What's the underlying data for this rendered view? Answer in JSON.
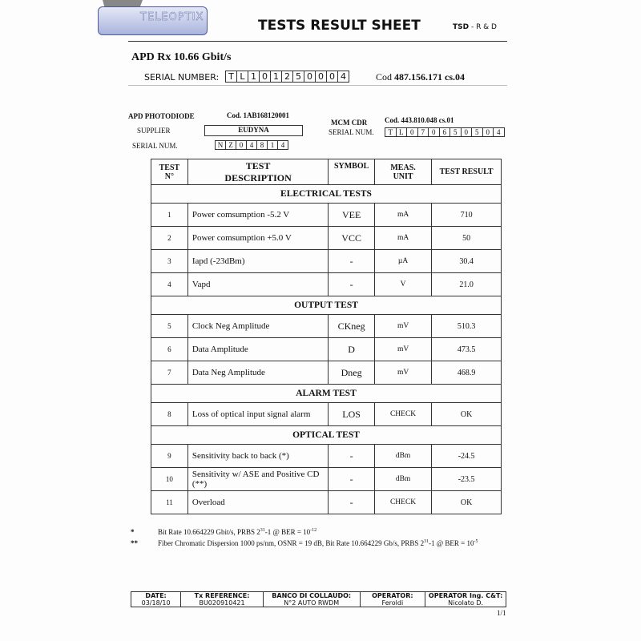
{
  "header": {
    "logo": "TELEOPTIX",
    "title": "TESTS RESULT SHEET",
    "dept_bold": "TSD",
    "dept": " - R & D"
  },
  "product": {
    "name": "APD Rx 10.66 Gbit/s",
    "serial_label": "SERIAL NUMBER:",
    "serial": [
      "T",
      "L",
      "1",
      "0",
      "1",
      "2",
      "5",
      "0",
      "0",
      "0",
      "4"
    ],
    "cod_label": "Cod ",
    "cod": "487.156.171 cs.04"
  },
  "photodiode": {
    "label": "APD PHOTODIODE",
    "cod": "Cod. 1AB168120001",
    "supplier_label": "SUPPLIER",
    "supplier": "EUDYNA",
    "serial_label": "SERIAL NUM.",
    "serial": [
      "N",
      "Z",
      "0",
      "4",
      "8",
      "1",
      "4"
    ]
  },
  "mcm": {
    "label": "MCM CDR",
    "cod": "Cod.  443.810.048 cs.01",
    "serial_label": "SERIAL NUM.",
    "serial": [
      "T",
      "L",
      "0",
      "7",
      "0",
      "6",
      "5",
      "0",
      "5",
      "0",
      "4"
    ]
  },
  "table": {
    "headers": {
      "num": "TEST N°",
      "desc_1": "TEST",
      "desc_2": "DESCRIPTION",
      "symbol": "SYMBOL",
      "unit": "MEAS. UNIT",
      "result": "TEST RESULT"
    },
    "sections": [
      {
        "title": "ELECTRICAL TESTS",
        "rows": [
          {
            "n": "1",
            "desc": "Power comsumption -5.2 V",
            "symbol": "VEE",
            "unit": "mA",
            "result": "710"
          },
          {
            "n": "2",
            "desc": "Power comsumption +5.0 V",
            "symbol": "VCC",
            "unit": "mA",
            "result": "50"
          },
          {
            "n": "3",
            "desc": "Iapd (-23dBm)",
            "symbol": "-",
            "unit": "µA",
            "result": "30.4"
          },
          {
            "n": "4",
            "desc": "Vapd",
            "symbol": "-",
            "unit": "V",
            "result": "21.0"
          }
        ]
      },
      {
        "title": "OUTPUT TEST",
        "rows": [
          {
            "n": "5",
            "desc": "Clock Neg Amplitude",
            "symbol": "CKneg",
            "unit": "mV",
            "result": "510.3"
          },
          {
            "n": "6",
            "desc": "Data  Amplitude",
            "symbol": "D",
            "unit": "mV",
            "result": "473.5"
          },
          {
            "n": "7",
            "desc": "Data  Neg Amplitude",
            "symbol": "Dneg",
            "unit": "mV",
            "result": "468.9"
          }
        ]
      },
      {
        "title": "ALARM TEST",
        "rows": [
          {
            "n": "8",
            "desc": "Loss of optical input signal alarm",
            "symbol": "LOS",
            "unit": "CHECK",
            "result": "OK"
          }
        ]
      },
      {
        "title": "OPTICAL TEST",
        "rows": [
          {
            "n": "9",
            "desc": "Sensitivity back to back (*)",
            "symbol": "-",
            "unit": "dBm",
            "result": "-24.5"
          },
          {
            "n": "10",
            "desc": "Sensitivity w/ ASE and Positive CD (**)",
            "symbol": "-",
            "unit": "dBm",
            "result": "-23.5"
          },
          {
            "n": "11",
            "desc": "Overload",
            "symbol": "-",
            "unit": "CHECK",
            "result": "OK"
          }
        ]
      }
    ]
  },
  "notes": [
    {
      "mark": "*",
      "text": "Bit Rate 10.664229 Gbit/s, PRBS 2",
      "sup1": "31",
      "mid": "-1 @ BER = 10",
      "sup2": "-12"
    },
    {
      "mark": "**",
      "text": "Fiber Chromatic Dispersion 1000 ps/nm, OSNR = 19 dB, Bit Rate 10.664229 Gb/s, PRBS 2",
      "sup1": "31",
      "mid": "-1 @ BER = 10",
      "sup2": "-5"
    }
  ],
  "footer": {
    "cols": [
      {
        "label": "DATE:",
        "value": "03/18/10"
      },
      {
        "label": "Tx REFERENCE:",
        "value": "BU020910421"
      },
      {
        "label": "BANCO DI COLLAUDO:",
        "value": "N°2 AUTO RWDM"
      },
      {
        "label": "OPERATOR:",
        "value": "Feroldi"
      },
      {
        "label": "OPERATOR Ing. C&T:",
        "value": "Nicolato D."
      }
    ],
    "page": "1/1"
  }
}
